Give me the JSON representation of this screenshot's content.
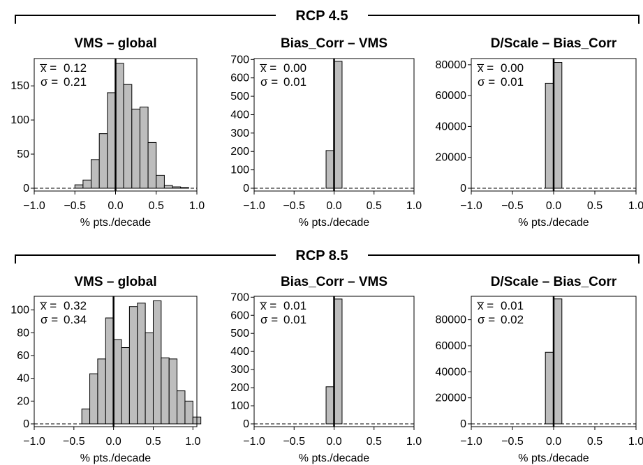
{
  "figure": {
    "rows": [
      {
        "label": "RCP 4.5"
      },
      {
        "label": "RCP 8.5"
      }
    ]
  },
  "chart_data": [
    {
      "type": "bar",
      "row": "RCP 4.5",
      "title": "VMS – global",
      "xlabel": "% pts./decade",
      "xlim": [
        -1.0,
        1.0
      ],
      "ylim": [
        0,
        190
      ],
      "xticks": [
        "−1.0",
        "−0.5",
        "0.0",
        "0.5",
        "1.0"
      ],
      "yticks": [
        0,
        50,
        100,
        150
      ],
      "bin_width": 0.1,
      "x": [
        -0.45,
        -0.35,
        -0.25,
        -0.15,
        -0.05,
        0.05,
        0.15,
        0.25,
        0.35,
        0.45,
        0.55,
        0.65,
        0.75,
        0.85
      ],
      "values": [
        5,
        12,
        42,
        80,
        140,
        183,
        152,
        116,
        119,
        67,
        19,
        4,
        2,
        1
      ],
      "stats": {
        "mean_label": "x̅ =",
        "mean": "0.12",
        "sd_label": "σ =",
        "sd": "0.21"
      }
    },
    {
      "type": "bar",
      "row": "RCP 4.5",
      "title": "Bias_Corr – VMS",
      "xlabel": "% pts./decade",
      "xlim": [
        -1.0,
        1.0
      ],
      "ylim": [
        0,
        705
      ],
      "xticks": [
        "−1.0",
        "−0.5",
        "0.0",
        "0.5",
        "1.0"
      ],
      "yticks": [
        0,
        100,
        200,
        300,
        400,
        500,
        600,
        700
      ],
      "bin_width": 0.1,
      "x": [
        -0.05,
        0.05
      ],
      "values": [
        205,
        690
      ],
      "stats": {
        "mean_label": "x̅ =",
        "mean": "0.00",
        "sd_label": "σ =",
        "sd": "0.01"
      }
    },
    {
      "type": "bar",
      "row": "RCP 4.5",
      "title": "D/Scale – Bias_Corr",
      "xlabel": "% pts./decade",
      "xlim": [
        -1.0,
        1.0
      ],
      "ylim": [
        0,
        84000
      ],
      "xticks": [
        "−1.0",
        "−0.5",
        "0.0",
        "0.5",
        "1.0"
      ],
      "yticks": [
        0,
        20000,
        40000,
        60000,
        80000
      ],
      "bin_width": 0.1,
      "x": [
        -0.05,
        0.05
      ],
      "values": [
        68000,
        81500
      ],
      "stats": {
        "mean_label": "x̅ =",
        "mean": "0.00",
        "sd_label": "σ =",
        "sd": "0.01"
      }
    },
    {
      "type": "bar",
      "row": "RCP 8.5",
      "title": "VMS – global",
      "xlabel": "% pts./decade",
      "xlim": [
        -1.0,
        1.05
      ],
      "ylim": [
        0,
        112
      ],
      "xticks": [
        "−1.0",
        "−0.5",
        "0.0",
        "0.5",
        "1.0"
      ],
      "yticks": [
        0,
        20,
        40,
        60,
        80,
        100
      ],
      "bin_width": 0.1,
      "x": [
        -0.35,
        -0.25,
        -0.15,
        -0.05,
        0.05,
        0.15,
        0.25,
        0.35,
        0.45,
        0.55,
        0.65,
        0.75,
        0.85,
        0.95,
        1.05
      ],
      "values": [
        13,
        44,
        57,
        93,
        74,
        67,
        103,
        106,
        80,
        108,
        58,
        57,
        29,
        20,
        6
      ],
      "stats": {
        "mean_label": "x̅ =",
        "mean": "0.32",
        "sd_label": "σ =",
        "sd": "0.34"
      }
    },
    {
      "type": "bar",
      "row": "RCP 8.5",
      "title": "Bias_Corr – VMS",
      "xlabel": "% pts./decade",
      "xlim": [
        -1.0,
        1.0
      ],
      "ylim": [
        0,
        705
      ],
      "xticks": [
        "−1.0",
        "−0.5",
        "0.0",
        "0.5",
        "1.0"
      ],
      "yticks": [
        0,
        100,
        200,
        300,
        400,
        500,
        600,
        700
      ],
      "bin_width": 0.1,
      "x": [
        -0.05,
        0.05
      ],
      "values": [
        205,
        690
      ],
      "stats": {
        "mean_label": "x̅ =",
        "mean": "0.01",
        "sd_label": "σ =",
        "sd": "0.01"
      }
    },
    {
      "type": "bar",
      "row": "RCP 8.5",
      "title": "D/Scale – Bias_Corr",
      "xlabel": "% pts./decade",
      "xlim": [
        -1.0,
        1.0
      ],
      "ylim": [
        0,
        98000
      ],
      "xticks": [
        "−1.0",
        "−0.5",
        "0.0",
        "0.5",
        "1.0"
      ],
      "yticks": [
        0,
        20000,
        40000,
        60000,
        80000
      ],
      "bin_width": 0.1,
      "x": [
        -0.05,
        0.05
      ],
      "values": [
        55000,
        96000
      ],
      "stats": {
        "mean_label": "x̅ =",
        "mean": "0.01",
        "sd_label": "σ =",
        "sd": "0.02"
      }
    }
  ]
}
